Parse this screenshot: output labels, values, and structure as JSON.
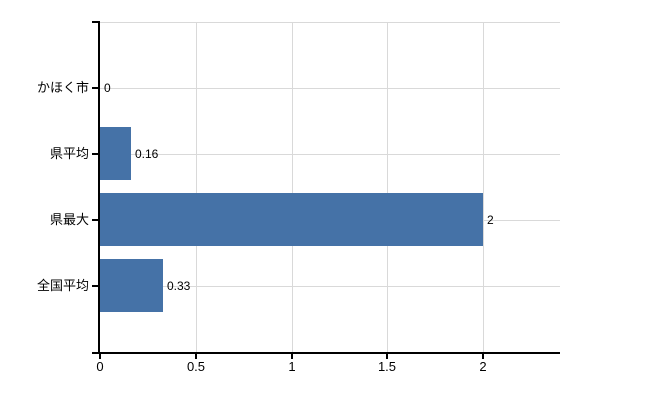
{
  "chart_data": {
    "type": "bar",
    "orientation": "horizontal",
    "title": "",
    "xlabel": "",
    "ylabel": "",
    "categories": [
      "かほく市",
      "県平均",
      "県最大",
      "全国平均"
    ],
    "values": [
      0,
      0.16,
      2,
      0.33
    ],
    "value_labels": [
      "0",
      "0.16",
      "2",
      "0.33"
    ],
    "x_ticks": [
      0,
      0.5,
      1,
      1.5,
      2
    ],
    "x_tick_labels": [
      "0",
      "0.5",
      "1",
      "1.5",
      "2"
    ],
    "xlim": [
      0,
      2.4
    ],
    "grid": true,
    "legend": false,
    "colors": {
      "bar": "#4572a7",
      "grid": "#d9d9d9",
      "axis": "#000000",
      "text": "#000000"
    }
  }
}
